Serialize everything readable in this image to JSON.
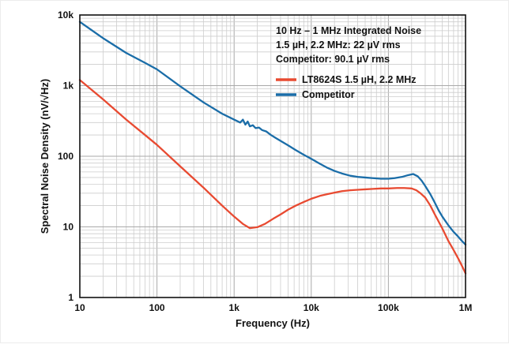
{
  "chart_data": {
    "type": "line",
    "title": "",
    "xlabel": "Frequency (Hz)",
    "ylabel": "Spectral Noise Density (nV/√Hz)",
    "xscale": "log",
    "yscale": "log",
    "xlim": [
      10,
      1000000
    ],
    "ylim": [
      1,
      10000
    ],
    "grid": "on",
    "xtick_values": [
      10,
      100,
      1000,
      10000,
      100000,
      1000000
    ],
    "xtick_labels": [
      "10",
      "100",
      "1k",
      "10k",
      "100k",
      "1M"
    ],
    "ytick_values": [
      1,
      10,
      100,
      1000,
      10000
    ],
    "ytick_labels": [
      "1",
      "10",
      "100",
      "1k",
      "10k"
    ],
    "annotation": [
      "10 Hz – 1 MHz Integrated Noise",
      "1.5 µH, 2.2 MHz: 22 µV rms",
      "Competitor: 90.1 µV rms"
    ],
    "legend": [
      {
        "name": "LT8624S 1.5 µH, 2.2 MHz",
        "color": "#e84a31"
      },
      {
        "name": "Competitor",
        "color": "#1a6da8"
      }
    ],
    "legend_position": "upper right",
    "series": [
      {
        "name": "LT8624S 1.5 µH, 2.2 MHz",
        "color": "#e84a31",
        "data": [
          [
            10,
            1200
          ],
          [
            20,
            640
          ],
          [
            40,
            330
          ],
          [
            70,
            200
          ],
          [
            100,
            145
          ],
          [
            200,
            72
          ],
          [
            400,
            36
          ],
          [
            700,
            20
          ],
          [
            1000,
            14
          ],
          [
            1300,
            11
          ],
          [
            1600,
            9.6
          ],
          [
            2000,
            9.9
          ],
          [
            2500,
            11
          ],
          [
            3200,
            13
          ],
          [
            4000,
            15
          ],
          [
            5000,
            17.5
          ],
          [
            6300,
            20
          ],
          [
            8000,
            22.5
          ],
          [
            10000,
            25
          ],
          [
            13000,
            27.5
          ],
          [
            16000,
            29
          ],
          [
            20000,
            30.5
          ],
          [
            25000,
            32
          ],
          [
            32000,
            33
          ],
          [
            40000,
            33.5
          ],
          [
            50000,
            34
          ],
          [
            63000,
            34.5
          ],
          [
            80000,
            35
          ],
          [
            100000,
            35
          ],
          [
            130000,
            35.5
          ],
          [
            160000,
            35.5
          ],
          [
            200000,
            35
          ],
          [
            230000,
            33
          ],
          [
            260000,
            30
          ],
          [
            300000,
            26
          ],
          [
            350000,
            20
          ],
          [
            400000,
            15
          ],
          [
            500000,
            9.5
          ],
          [
            600000,
            6.3
          ],
          [
            700000,
            4.7
          ],
          [
            800000,
            3.6
          ],
          [
            900000,
            2.8
          ],
          [
            1000000,
            2.2
          ]
        ]
      },
      {
        "name": "Competitor",
        "color": "#1a6da8",
        "data": [
          [
            10,
            8000
          ],
          [
            20,
            4700
          ],
          [
            40,
            2900
          ],
          [
            70,
            2100
          ],
          [
            100,
            1700
          ],
          [
            200,
            980
          ],
          [
            400,
            580
          ],
          [
            700,
            400
          ],
          [
            1000,
            330
          ],
          [
            1200,
            300
          ],
          [
            1300,
            330
          ],
          [
            1400,
            280
          ],
          [
            1500,
            310
          ],
          [
            1600,
            265
          ],
          [
            1750,
            275
          ],
          [
            1900,
            250
          ],
          [
            2100,
            255
          ],
          [
            2300,
            235
          ],
          [
            2600,
            225
          ],
          [
            3000,
            200
          ],
          [
            3500,
            180
          ],
          [
            4200,
            160
          ],
          [
            5000,
            143
          ],
          [
            6300,
            122
          ],
          [
            8000,
            105
          ],
          [
            10000,
            92
          ],
          [
            13000,
            78
          ],
          [
            16000,
            69
          ],
          [
            20000,
            62
          ],
          [
            25000,
            57
          ],
          [
            32000,
            53
          ],
          [
            40000,
            51
          ],
          [
            50000,
            50
          ],
          [
            63000,
            49
          ],
          [
            80000,
            48
          ],
          [
            100000,
            48
          ],
          [
            120000,
            49
          ],
          [
            150000,
            51
          ],
          [
            180000,
            54
          ],
          [
            210000,
            56
          ],
          [
            240000,
            52
          ],
          [
            270000,
            45
          ],
          [
            300000,
            38
          ],
          [
            350000,
            29
          ],
          [
            400000,
            22
          ],
          [
            450000,
            17
          ],
          [
            500000,
            14
          ],
          [
            600000,
            10.5
          ],
          [
            700000,
            8.5
          ],
          [
            800000,
            7.3
          ],
          [
            900000,
            6.3
          ],
          [
            1000000,
            5.6
          ]
        ]
      }
    ]
  }
}
